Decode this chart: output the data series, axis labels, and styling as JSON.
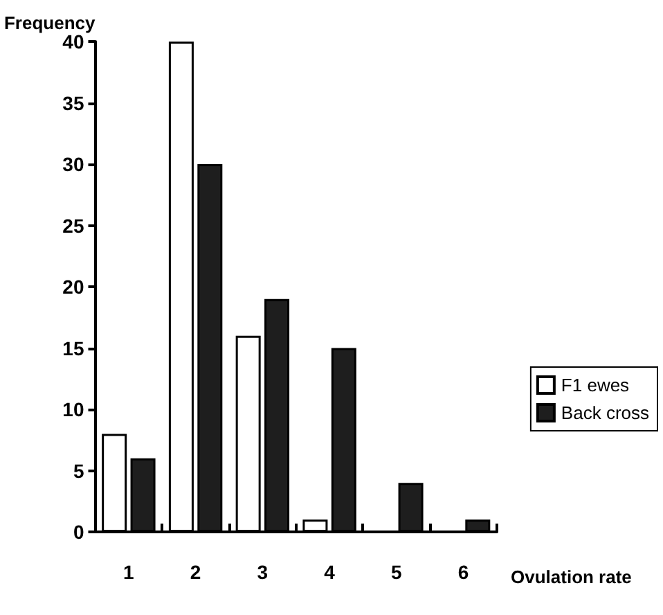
{
  "chart_data": {
    "type": "bar",
    "xlabel": "Ovulation rate",
    "ylabel": "Frequency",
    "categories": [
      "1",
      "2",
      "3",
      "4",
      "5",
      "6"
    ],
    "series": [
      {
        "name": "F1 ewes",
        "color": "#ffffff",
        "values": [
          8,
          40,
          16,
          1,
          0,
          0
        ]
      },
      {
        "name": "Back cross",
        "color": "#1e1e1e",
        "values": [
          6,
          30,
          19,
          15,
          4,
          1
        ]
      }
    ],
    "ylim": [
      0,
      40
    ],
    "yticks": [
      0,
      5,
      10,
      15,
      20,
      25,
      30,
      35,
      40
    ],
    "grid": false,
    "legend": "right"
  }
}
